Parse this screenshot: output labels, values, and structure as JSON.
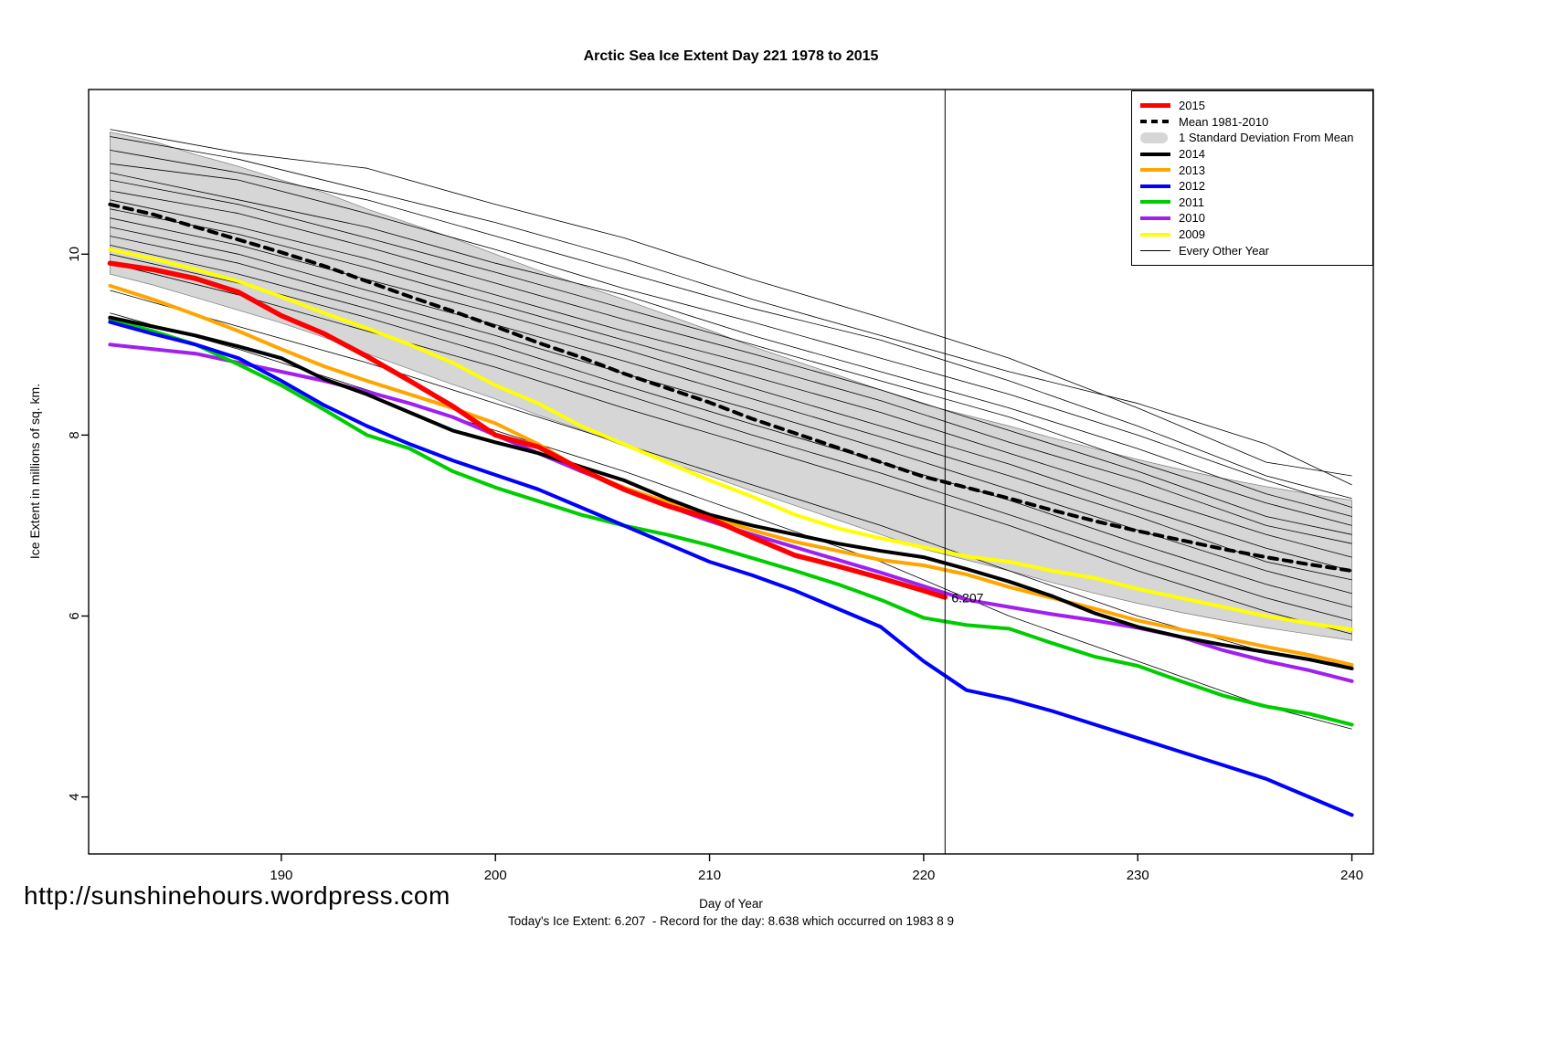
{
  "page": {
    "url": "http://sunshinehours.wordpress.com",
    "caption": "Today's Ice Extent: 6.207  - Record for the day: 8.638 which occurred on 1983 8 9"
  },
  "chart_data": {
    "type": "line",
    "title": "Arctic Sea Ice Extent Day 221 1978 to 2015",
    "xlabel": "Day of Year",
    "ylabel": "Ice Extent in millions of sq. km.",
    "xlim": [
      181,
      241
    ],
    "ylim": [
      3.37,
      11.82
    ],
    "x_ticks": [
      190,
      200,
      210,
      220,
      230,
      240
    ],
    "y_ticks": [
      4,
      6,
      8,
      10
    ],
    "grid": false,
    "legend_position": "top-right",
    "vline_x": 221,
    "annotation": {
      "text": "6.207",
      "x": 221.3,
      "y": 6.15,
      "color": "#FF0000"
    },
    "x": [
      182,
      184,
      186,
      188,
      190,
      192,
      194,
      196,
      198,
      200,
      202,
      204,
      206,
      208,
      210,
      212,
      214,
      216,
      218,
      220,
      222,
      224,
      226,
      228,
      230,
      232,
      234,
      236,
      238,
      240
    ],
    "band": {
      "name": "1 Standard Deviation From Mean",
      "color": "#D6D6D6",
      "upper": [
        11.35,
        11.25,
        11.1,
        10.97,
        10.82,
        10.68,
        10.5,
        10.34,
        10.18,
        10.0,
        9.82,
        9.66,
        9.5,
        9.33,
        9.16,
        8.98,
        8.82,
        8.66,
        8.5,
        8.34,
        8.22,
        8.1,
        7.97,
        7.85,
        7.73,
        7.62,
        7.52,
        7.43,
        7.35,
        7.28
      ],
      "lower": [
        9.78,
        9.66,
        9.52,
        9.38,
        9.24,
        9.08,
        8.9,
        8.73,
        8.56,
        8.4,
        8.22,
        8.06,
        7.88,
        7.7,
        7.55,
        7.38,
        7.22,
        7.06,
        6.9,
        6.74,
        6.62,
        6.5,
        6.37,
        6.25,
        6.14,
        6.04,
        5.95,
        5.87,
        5.8,
        5.73
      ]
    },
    "series": [
      {
        "name": "Mean 1981-2010",
        "color": "#000000",
        "width": 4,
        "dash": "9 7",
        "values": [
          10.55,
          10.44,
          10.3,
          10.16,
          10.02,
          9.87,
          9.7,
          9.53,
          9.37,
          9.2,
          9.02,
          8.86,
          8.68,
          8.52,
          8.36,
          8.18,
          8.02,
          7.86,
          7.7,
          7.54,
          7.42,
          7.3,
          7.17,
          7.05,
          6.94,
          6.84,
          6.74,
          6.65,
          6.57,
          6.5
        ]
      },
      {
        "name": "2009",
        "color": "#FFFF00",
        "width": 4,
        "values": [
          10.05,
          9.95,
          9.83,
          9.7,
          9.53,
          9.35,
          9.18,
          9.0,
          8.8,
          8.55,
          8.35,
          8.1,
          7.9,
          7.7,
          7.5,
          7.32,
          7.12,
          6.97,
          6.86,
          6.76,
          6.66,
          6.6,
          6.5,
          6.42,
          6.3,
          6.2,
          6.1,
          6.0,
          5.92,
          5.85
        ]
      },
      {
        "name": "2010",
        "color": "#A020F0",
        "width": 4,
        "values": [
          9.0,
          8.95,
          8.9,
          8.8,
          8.7,
          8.6,
          8.48,
          8.35,
          8.2,
          8.0,
          7.8,
          7.6,
          7.42,
          7.22,
          7.05,
          6.9,
          6.76,
          6.62,
          6.48,
          6.33,
          6.18,
          6.1,
          6.02,
          5.95,
          5.87,
          5.77,
          5.62,
          5.5,
          5.4,
          5.28
        ]
      },
      {
        "name": "2011",
        "color": "#00CD00",
        "width": 4,
        "values": [
          9.28,
          9.15,
          9.0,
          8.78,
          8.55,
          8.28,
          8.0,
          7.85,
          7.6,
          7.42,
          7.27,
          7.12,
          7.0,
          6.9,
          6.78,
          6.64,
          6.5,
          6.35,
          6.18,
          5.98,
          5.9,
          5.86,
          5.7,
          5.55,
          5.45,
          5.28,
          5.12,
          5.0,
          4.92,
          4.8
        ]
      },
      {
        "name": "2012",
        "color": "#0000FF",
        "width": 4,
        "values": [
          9.25,
          9.12,
          9.0,
          8.85,
          8.6,
          8.33,
          8.1,
          7.9,
          7.72,
          7.56,
          7.4,
          7.2,
          7.0,
          6.8,
          6.6,
          6.45,
          6.28,
          6.08,
          5.88,
          5.5,
          5.18,
          5.08,
          4.95,
          4.8,
          4.65,
          4.5,
          4.35,
          4.2,
          4.0,
          3.8
        ]
      },
      {
        "name": "2013",
        "color": "#FFA500",
        "width": 4,
        "values": [
          9.65,
          9.5,
          9.33,
          9.15,
          8.95,
          8.76,
          8.6,
          8.45,
          8.3,
          8.13,
          7.9,
          7.62,
          7.42,
          7.26,
          7.1,
          6.95,
          6.82,
          6.72,
          6.62,
          6.56,
          6.46,
          6.32,
          6.2,
          6.08,
          5.95,
          5.85,
          5.76,
          5.66,
          5.57,
          5.46
        ]
      },
      {
        "name": "2014",
        "color": "#000000",
        "width": 4,
        "values": [
          9.3,
          9.2,
          9.1,
          8.98,
          8.85,
          8.62,
          8.45,
          8.25,
          8.05,
          7.92,
          7.8,
          7.65,
          7.5,
          7.3,
          7.12,
          7.0,
          6.9,
          6.8,
          6.72,
          6.65,
          6.52,
          6.38,
          6.22,
          6.03,
          5.88,
          5.77,
          5.68,
          5.6,
          5.52,
          5.42
        ]
      },
      {
        "name": "2015",
        "color": "#FF0000",
        "width": 5.5,
        "x": [
          182,
          184,
          186,
          188,
          190,
          192,
          194,
          196,
          198,
          200,
          202,
          204,
          206,
          208,
          210,
          212,
          214,
          216,
          218,
          220,
          221
        ],
        "values": [
          9.9,
          9.83,
          9.73,
          9.58,
          9.32,
          9.12,
          8.87,
          8.6,
          8.32,
          8.0,
          7.87,
          7.62,
          7.4,
          7.22,
          7.08,
          6.87,
          6.67,
          6.55,
          6.42,
          6.28,
          6.207
        ]
      }
    ],
    "background_series": {
      "name": "Every Other Year",
      "color": "#000000",
      "width": 0.8,
      "x": [
        182,
        188,
        194,
        200,
        206,
        212,
        218,
        224,
        230,
        236,
        240
      ],
      "lines": [
        [
          11.38,
          11.12,
          10.95,
          10.55,
          10.18,
          9.72,
          9.3,
          8.85,
          8.3,
          7.7,
          7.55
        ],
        [
          11.3,
          11.05,
          10.7,
          10.35,
          9.95,
          9.5,
          9.1,
          8.7,
          8.35,
          7.9,
          7.45
        ],
        [
          11.15,
          10.9,
          10.6,
          10.2,
          9.8,
          9.4,
          9.05,
          8.6,
          8.1,
          7.55,
          7.3
        ],
        [
          11.0,
          10.82,
          10.45,
          10.05,
          9.62,
          9.25,
          8.85,
          8.45,
          8.0,
          7.5,
          7.2
        ],
        [
          10.9,
          10.6,
          10.3,
          9.9,
          9.55,
          9.1,
          8.7,
          8.3,
          7.85,
          7.35,
          7.1
        ],
        [
          10.82,
          10.55,
          10.18,
          9.8,
          9.4,
          9.0,
          8.6,
          8.2,
          7.7,
          7.25,
          7.0
        ],
        [
          10.7,
          10.45,
          10.08,
          9.68,
          9.28,
          8.9,
          8.5,
          8.05,
          7.6,
          7.1,
          6.9
        ],
        [
          10.6,
          10.3,
          9.95,
          9.55,
          9.15,
          8.78,
          8.38,
          7.92,
          7.5,
          7.0,
          6.8
        ],
        [
          10.5,
          10.22,
          9.85,
          9.45,
          9.05,
          8.65,
          8.25,
          7.8,
          7.35,
          6.9,
          6.65
        ],
        [
          10.4,
          10.1,
          9.72,
          9.35,
          8.95,
          8.52,
          8.1,
          7.68,
          7.2,
          6.75,
          6.5
        ],
        [
          10.3,
          10.0,
          9.6,
          9.22,
          8.82,
          8.4,
          7.98,
          7.55,
          7.1,
          6.6,
          6.4
        ],
        [
          10.2,
          9.9,
          9.5,
          9.1,
          8.68,
          8.28,
          7.85,
          7.4,
          6.95,
          6.5,
          6.25
        ],
        [
          10.1,
          9.78,
          9.4,
          9.0,
          8.55,
          8.12,
          7.7,
          7.28,
          6.8,
          6.35,
          6.1
        ],
        [
          10.0,
          9.68,
          9.3,
          8.88,
          8.45,
          8.0,
          7.58,
          7.12,
          6.65,
          6.2,
          5.95
        ],
        [
          9.9,
          9.55,
          9.15,
          8.75,
          8.3,
          7.88,
          7.45,
          7.0,
          6.5,
          6.05,
          5.8
        ],
        [
          9.6,
          9.2,
          8.8,
          8.35,
          7.9,
          7.45,
          7.0,
          6.5,
          6.0,
          5.6,
          5.45
        ],
        [
          9.35,
          8.95,
          8.5,
          8.05,
          7.6,
          7.1,
          6.6,
          6.0,
          5.5,
          5.0,
          4.75
        ]
      ]
    }
  },
  "legend": {
    "entries": [
      {
        "label": "2015",
        "swatch": "thick-line",
        "color": "#FF0000"
      },
      {
        "label": "Mean 1981-2010",
        "swatch": "dashed-line",
        "color": "#000000"
      },
      {
        "label": "1 Standard Deviation From Mean",
        "swatch": "band",
        "color": "#D6D6D6"
      },
      {
        "label": "2014",
        "swatch": "line",
        "color": "#000000"
      },
      {
        "label": "2013",
        "swatch": "line",
        "color": "#FFA500"
      },
      {
        "label": "2012",
        "swatch": "line",
        "color": "#0000FF"
      },
      {
        "label": "2011",
        "swatch": "line",
        "color": "#00CD00"
      },
      {
        "label": "2010",
        "swatch": "line",
        "color": "#A020F0"
      },
      {
        "label": "2009",
        "swatch": "line",
        "color": "#FFFF00"
      },
      {
        "label": "Every Other Year",
        "swatch": "thin-line",
        "color": "#000000"
      }
    ]
  }
}
